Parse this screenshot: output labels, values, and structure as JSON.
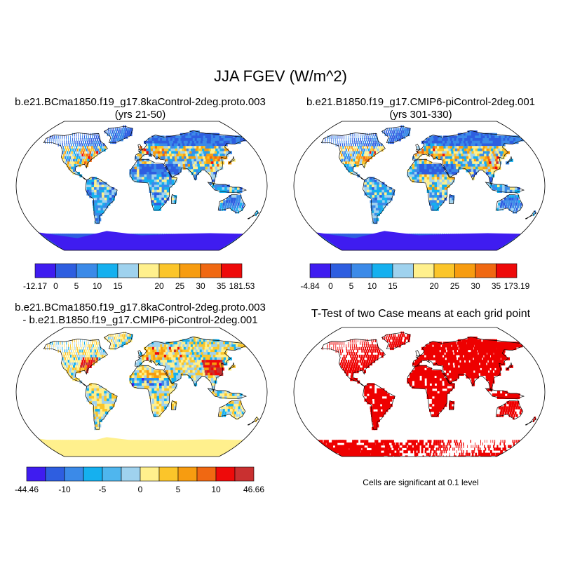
{
  "figure": {
    "title": "JJA FGEV (W/m^2)",
    "note": "Cells are significant at 0.1 level"
  },
  "colors": {
    "scale": [
      "#3f1cf0",
      "#2e5ee0",
      "#3b8ae8",
      "#15b0ef",
      "#9fd2ee",
      "#fff08d",
      "#fbc52a",
      "#f79c10",
      "#f06812",
      "#ee0a0a",
      "#c93030"
    ],
    "map_outline": "#000000",
    "ocean": "#ffffff",
    "significant": "#ee0000"
  },
  "panels": [
    {
      "id": "case1",
      "title_line1": "b.e21.BCma1850.f19_g17.8kaControl-2deg.proto.003",
      "title_line2": "(yrs 21-50)",
      "palette": "sequential"
    },
    {
      "id": "case2",
      "title_line1": "b.e21.B1850.f19_g17.CMIP6-piControl-2deg.001",
      "title_line2": "(yrs 301-330)",
      "palette": "sequential"
    },
    {
      "id": "diff",
      "title_line1": "b.e21.BCma1850.f19_g17.8kaControl-2deg.proto.003",
      "title_line2": "- b.e21.B1850.f19_g17.CMIP6-piControl-2deg.001",
      "palette": "diverging"
    },
    {
      "id": "ttest",
      "title_line1": "T-Test of two Case means at each grid point",
      "title_line2": "",
      "palette": "significance"
    }
  ],
  "chart_data": [
    {
      "type": "heatmap",
      "title": "b.e21.BCma1850.f19_g17.8kaControl-2deg.proto.003 (yrs 21-50)",
      "colorbar": {
        "levels": [
          0,
          5,
          10,
          15,
          20,
          25,
          30,
          35
        ],
        "min_label": "-12.17",
        "max_label": "181.53",
        "tick_labels": [
          "-12.17",
          "0",
          "5",
          "10",
          "15",
          "20",
          "25",
          "30",
          "35",
          "181.53"
        ]
      }
    },
    {
      "type": "heatmap",
      "title": "b.e21.B1850.f19_g17.CMIP6-piControl-2deg.001 (yrs 301-330)",
      "colorbar": {
        "levels": [
          0,
          5,
          10,
          15,
          20,
          25,
          30,
          35
        ],
        "min_label": "-4.84",
        "max_label": "173.19",
        "tick_labels": [
          "-4.84",
          "0",
          "5",
          "10",
          "15",
          "20",
          "25",
          "30",
          "35",
          "173.19"
        ]
      }
    },
    {
      "type": "heatmap",
      "title": "b.e21.BCma1850.f19_g17.8kaControl-2deg.proto.003 - b.e21.B1850.f19_g17.CMIP6-piControl-2deg.001",
      "colorbar": {
        "levels": [
          -10,
          -5,
          0,
          5,
          10
        ],
        "min_label": "-44.46",
        "max_label": "46.66",
        "tick_labels": [
          "-44.46",
          "-10",
          "-5",
          "0",
          "5",
          "10",
          "46.66"
        ]
      }
    },
    {
      "type": "heatmap",
      "title": "T-Test of two Case means at each grid point",
      "legend": "Cells are significant at 0.1 level"
    }
  ]
}
